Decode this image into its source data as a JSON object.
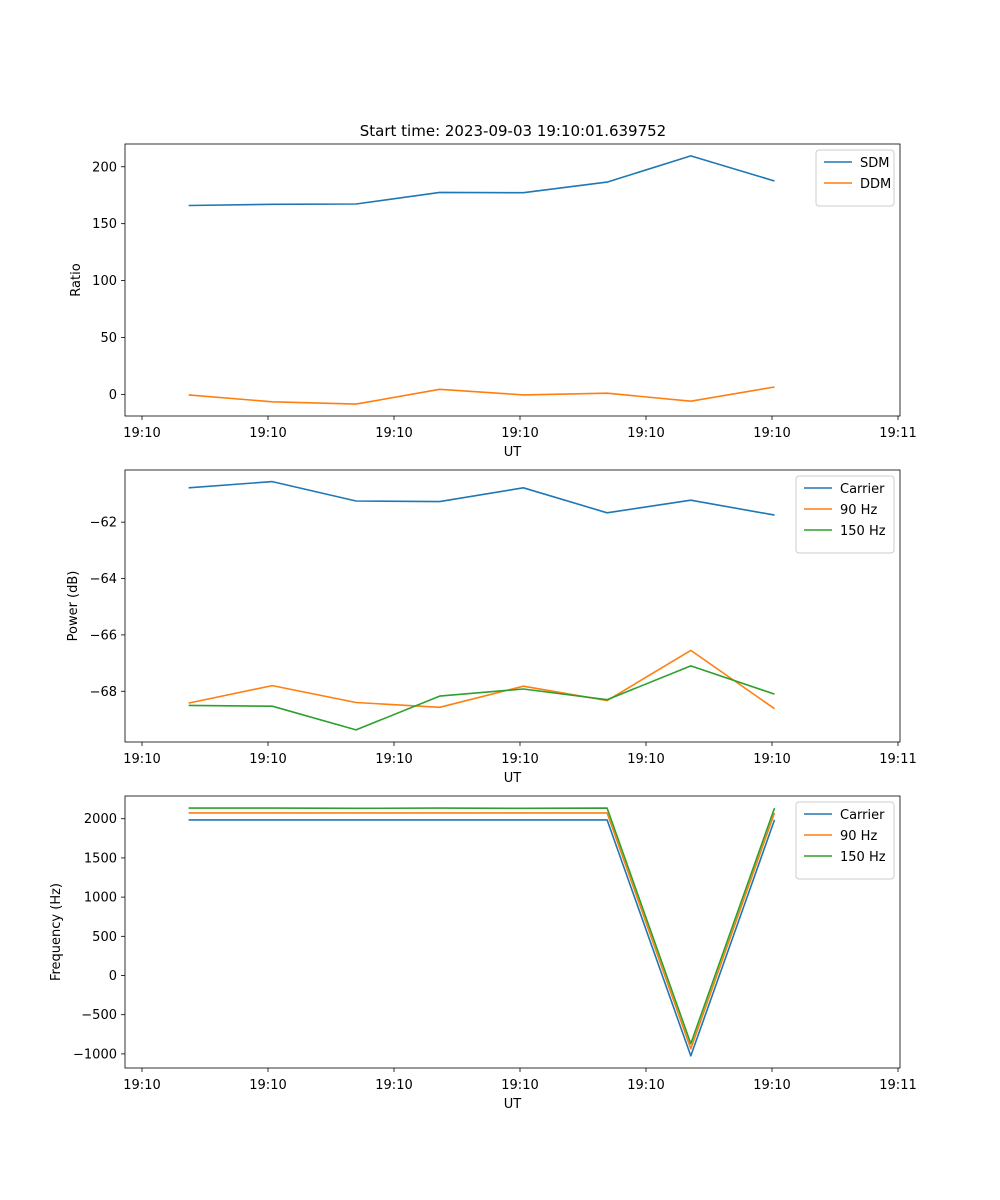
{
  "figure": {
    "title": "Start time: 2023-09-03 19:10:01.639752"
  },
  "chart_data": [
    {
      "type": "line",
      "id": "ratio",
      "title": "Start time: 2023-09-03 19:10:01.639752",
      "xlabel": "UT",
      "ylabel": "Ratio",
      "x_tick_labels": [
        "19:10",
        "19:10",
        "19:10",
        "19:10",
        "19:10",
        "19:10",
        "19:11"
      ],
      "xlim": [
        -0.36,
        8.9
      ],
      "x": [
        0.4,
        1.4,
        2.4,
        3.4,
        4.4,
        5.4,
        6.4,
        7.4
      ],
      "ylim": [
        -19,
        220
      ],
      "yticks": [
        0,
        50,
        100,
        150,
        200
      ],
      "series": [
        {
          "name": "SDM",
          "color": "#1f77b4",
          "values": [
            166,
            167,
            167.3,
            177.5,
            177.2,
            186.5,
            209.5,
            187.5
          ]
        },
        {
          "name": "DDM",
          "color": "#ff7f0e",
          "values": [
            -0.5,
            -6.5,
            -8.5,
            4.5,
            -0.5,
            1,
            -6,
            6.5
          ]
        }
      ],
      "legend": "top-right"
    },
    {
      "type": "line",
      "id": "power",
      "title": "",
      "xlabel": "UT",
      "ylabel": "Power (dB)",
      "x_tick_labels": [
        "19:10",
        "19:10",
        "19:10",
        "19:10",
        "19:10",
        "19:10",
        "19:11"
      ],
      "xlim": [
        -0.36,
        8.9
      ],
      "x": [
        0.4,
        1.4,
        2.4,
        3.4,
        4.4,
        5.4,
        6.4,
        7.4
      ],
      "ylim": [
        -69.8,
        -60.15
      ],
      "yticks": [
        -68,
        -66,
        -64,
        -62
      ],
      "series": [
        {
          "name": "Carrier",
          "color": "#1f77b4",
          "values": [
            -60.78,
            -60.56,
            -61.25,
            -61.27,
            -60.78,
            -61.67,
            -61.22,
            -61.75
          ]
        },
        {
          "name": "90 Hz",
          "color": "#ff7f0e",
          "values": [
            -68.42,
            -67.8,
            -68.4,
            -68.57,
            -67.82,
            -68.33,
            -66.55,
            -68.62
          ]
        },
        {
          "name": "150 Hz",
          "color": "#2ca02c",
          "values": [
            -68.5,
            -68.53,
            -69.37,
            -68.17,
            -67.92,
            -68.3,
            -67.1,
            -68.1
          ]
        }
      ],
      "legend": "top-right"
    },
    {
      "type": "line",
      "id": "frequency",
      "title": "",
      "xlabel": "UT",
      "ylabel": "Frequency (Hz)",
      "x_tick_labels": [
        "19:10",
        "19:10",
        "19:10",
        "19:10",
        "19:10",
        "19:10",
        "19:11"
      ],
      "xlim": [
        -0.36,
        8.9
      ],
      "x": [
        0.4,
        1.4,
        2.4,
        3.4,
        4.4,
        5.4,
        6.4,
        7.4
      ],
      "ylim": [
        -1180,
        2290
      ],
      "yticks": [
        -1000,
        -500,
        0,
        500,
        1000,
        1500,
        2000
      ],
      "series": [
        {
          "name": "Carrier",
          "color": "#1f77b4",
          "values": [
            1985,
            1985,
            1985,
            1985,
            1985,
            1985,
            -1025,
            1985
          ]
        },
        {
          "name": "90 Hz",
          "color": "#ff7f0e",
          "values": [
            2075,
            2075,
            2075,
            2075,
            2075,
            2075,
            -935,
            2075
          ]
        },
        {
          "name": "150 Hz",
          "color": "#2ca02c",
          "values": [
            2135,
            2135,
            2133,
            2135,
            2133,
            2135,
            -870,
            2135
          ]
        }
      ],
      "legend": "top-right"
    }
  ]
}
